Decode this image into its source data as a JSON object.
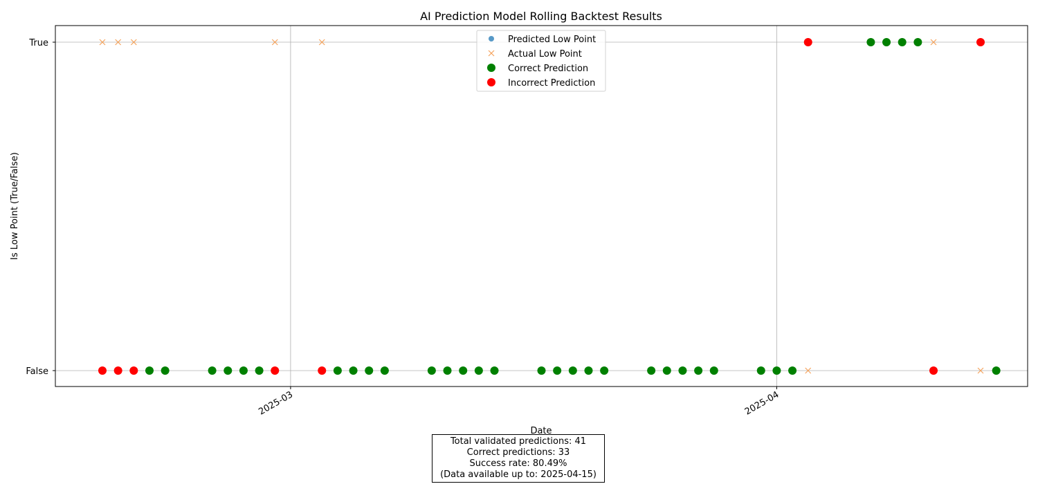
{
  "chart_data": {
    "type": "scatter",
    "title": "AI Prediction Model Rolling Backtest Results",
    "xlabel": "Date",
    "ylabel": "Is Low Point (True/False)",
    "y_categories": [
      "False",
      "True"
    ],
    "x_ticks": [
      "2025-03-01",
      "2025-04-01"
    ],
    "x_tick_labels": [
      "2025-03",
      "2025-04"
    ],
    "xlim": [
      "2025-02-14",
      "2025-04-17"
    ],
    "grid": true,
    "legend_position": "top-center",
    "legend": [
      {
        "label": "Predicted Low Point",
        "marker": "circle",
        "color": "#1f77b4"
      },
      {
        "label": "Actual Low Point",
        "marker": "x",
        "color": "#f5a35c"
      },
      {
        "label": "Correct Prediction",
        "marker": "circle",
        "color": "#008000"
      },
      {
        "label": "Incorrect Prediction",
        "marker": "circle",
        "color": "#ff0000"
      }
    ],
    "series": [
      {
        "name": "Actual Low Point",
        "color": "#f5a35c",
        "marker": "x",
        "points": [
          {
            "x": "2025-02-17",
            "y": "True"
          },
          {
            "x": "2025-02-18",
            "y": "True"
          },
          {
            "x": "2025-02-19",
            "y": "True"
          },
          {
            "x": "2025-02-28",
            "y": "True"
          },
          {
            "x": "2025-03-03",
            "y": "True"
          },
          {
            "x": "2025-04-03",
            "y": "False"
          },
          {
            "x": "2025-04-11",
            "y": "True"
          },
          {
            "x": "2025-04-14",
            "y": "False"
          }
        ]
      },
      {
        "name": "Correct Prediction",
        "color": "#008000",
        "marker": "circle",
        "points": [
          {
            "x": "2025-02-20",
            "y": "False"
          },
          {
            "x": "2025-02-21",
            "y": "False"
          },
          {
            "x": "2025-02-24",
            "y": "False"
          },
          {
            "x": "2025-02-25",
            "y": "False"
          },
          {
            "x": "2025-02-26",
            "y": "False"
          },
          {
            "x": "2025-02-27",
            "y": "False"
          },
          {
            "x": "2025-03-04",
            "y": "False"
          },
          {
            "x": "2025-03-05",
            "y": "False"
          },
          {
            "x": "2025-03-06",
            "y": "False"
          },
          {
            "x": "2025-03-07",
            "y": "False"
          },
          {
            "x": "2025-03-10",
            "y": "False"
          },
          {
            "x": "2025-03-11",
            "y": "False"
          },
          {
            "x": "2025-03-12",
            "y": "False"
          },
          {
            "x": "2025-03-13",
            "y": "False"
          },
          {
            "x": "2025-03-14",
            "y": "False"
          },
          {
            "x": "2025-03-17",
            "y": "False"
          },
          {
            "x": "2025-03-18",
            "y": "False"
          },
          {
            "x": "2025-03-19",
            "y": "False"
          },
          {
            "x": "2025-03-20",
            "y": "False"
          },
          {
            "x": "2025-03-21",
            "y": "False"
          },
          {
            "x": "2025-03-24",
            "y": "False"
          },
          {
            "x": "2025-03-25",
            "y": "False"
          },
          {
            "x": "2025-03-26",
            "y": "False"
          },
          {
            "x": "2025-03-27",
            "y": "False"
          },
          {
            "x": "2025-03-28",
            "y": "False"
          },
          {
            "x": "2025-03-31",
            "y": "False"
          },
          {
            "x": "2025-04-01",
            "y": "False"
          },
          {
            "x": "2025-04-02",
            "y": "False"
          },
          {
            "x": "2025-04-07",
            "y": "True"
          },
          {
            "x": "2025-04-08",
            "y": "True"
          },
          {
            "x": "2025-04-09",
            "y": "True"
          },
          {
            "x": "2025-04-10",
            "y": "True"
          },
          {
            "x": "2025-04-15",
            "y": "False"
          }
        ]
      },
      {
        "name": "Incorrect Prediction",
        "color": "#ff0000",
        "marker": "circle",
        "points": [
          {
            "x": "2025-02-17",
            "y": "False"
          },
          {
            "x": "2025-02-18",
            "y": "False"
          },
          {
            "x": "2025-02-19",
            "y": "False"
          },
          {
            "x": "2025-02-28",
            "y": "False"
          },
          {
            "x": "2025-03-03",
            "y": "False"
          },
          {
            "x": "2025-04-03",
            "y": "True"
          },
          {
            "x": "2025-04-11",
            "y": "False"
          },
          {
            "x": "2025-04-14",
            "y": "True"
          }
        ]
      }
    ]
  },
  "stats": {
    "line1": "Total validated predictions: 41",
    "line2": "Correct predictions: 33",
    "line3": "Success rate: 80.49%",
    "line4": "(Data available up to: 2025-04-15)"
  }
}
